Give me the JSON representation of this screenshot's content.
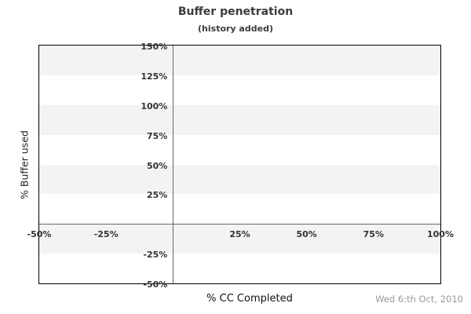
{
  "footer": {
    "date": "Wed 6:th Oct, 2010"
  },
  "chart_data": {
    "type": "line",
    "title": "Buffer penetration",
    "subtitle": "(history added)",
    "xlabel": "% CC Completed",
    "ylabel": "% Buffer used",
    "xlim": [
      -50,
      100
    ],
    "ylim": [
      -50,
      150
    ],
    "x_ticks": [
      {
        "value": -50,
        "label": "-50%"
      },
      {
        "value": -25,
        "label": "-25%"
      },
      {
        "value": 25,
        "label": "25%"
      },
      {
        "value": 50,
        "label": "50%"
      },
      {
        "value": 75,
        "label": "75%"
      },
      {
        "value": 100,
        "label": "100%"
      }
    ],
    "y_ticks": [
      {
        "value": 150,
        "label": "150%"
      },
      {
        "value": 125,
        "label": "125%"
      },
      {
        "value": 100,
        "label": "100%"
      },
      {
        "value": 75,
        "label": "75%"
      },
      {
        "value": 50,
        "label": "50%"
      },
      {
        "value": 25,
        "label": "25%"
      },
      {
        "value": -25,
        "label": "-25%"
      },
      {
        "value": -50,
        "label": "-50%"
      }
    ],
    "zero_lines": {
      "x": 0,
      "y": 0
    },
    "bands": [
      {
        "from": 150,
        "to": 125,
        "shaded": true
      },
      {
        "from": 125,
        "to": 100,
        "shaded": false
      },
      {
        "from": 100,
        "to": 75,
        "shaded": true
      },
      {
        "from": 75,
        "to": 50,
        "shaded": false
      },
      {
        "from": 50,
        "to": 25,
        "shaded": true
      },
      {
        "from": 25,
        "to": 0,
        "shaded": false
      },
      {
        "from": 0,
        "to": -25,
        "shaded": true
      },
      {
        "from": -25,
        "to": -50,
        "shaded": false
      }
    ],
    "series": [],
    "grid": false,
    "legend": "none",
    "colors": {
      "band_shaded": "#f3f3f3",
      "band_plain": "#ffffff",
      "plot_border": "#000000",
      "zero_line": "#666666",
      "tick_text": "#333333",
      "title_text": "#3c3c3c",
      "footer_date": "#999999"
    }
  }
}
